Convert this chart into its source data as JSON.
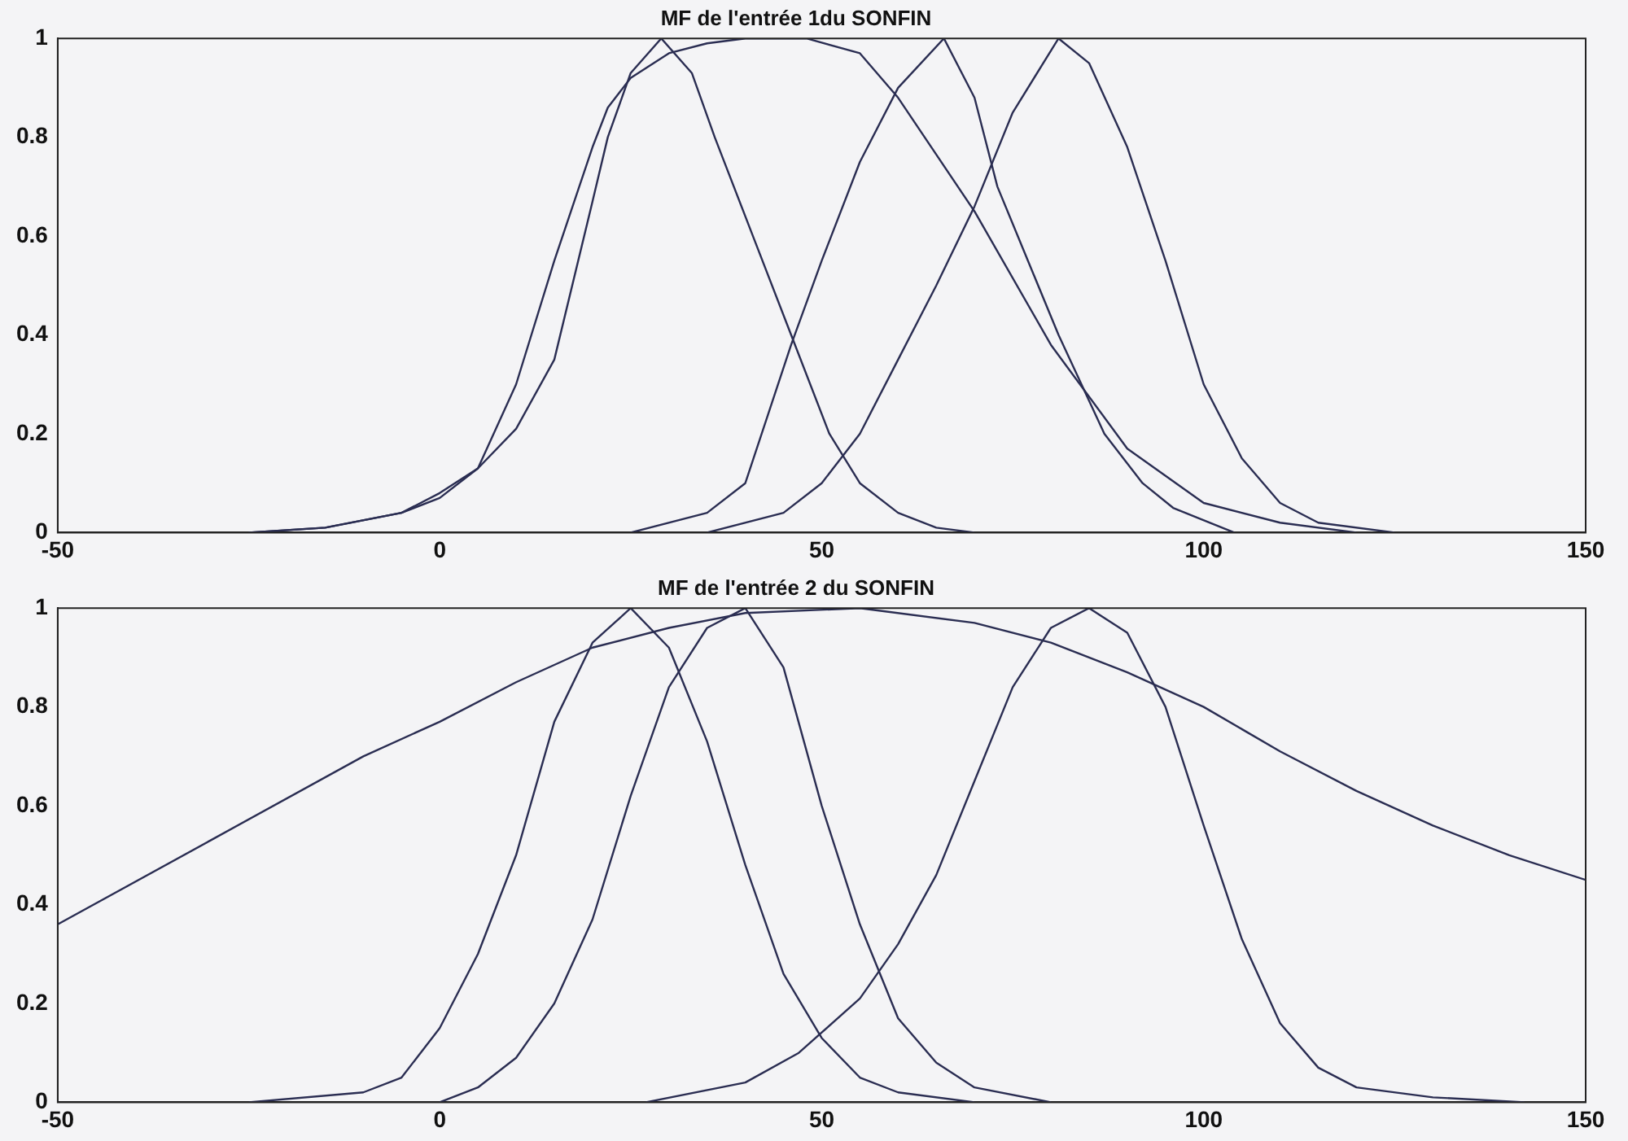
{
  "chart_data": [
    {
      "type": "line",
      "title": "MF de l'entrée 1du SONFIN",
      "xlim": [
        -50,
        150
      ],
      "xticks": [
        -50,
        0,
        50,
        100,
        150
      ],
      "ylim": [
        0,
        1
      ],
      "yticks": [
        0,
        0.2,
        0.4,
        0.6,
        0.8,
        1
      ],
      "grid": false,
      "legend": false,
      "marker": "none",
      "line_style": "solid",
      "series": [
        {
          "color": "#2a2d52",
          "x": [
            -25,
            -15,
            -5,
            0,
            5,
            10,
            15,
            20,
            22,
            25,
            29,
            33,
            36,
            41,
            46,
            51,
            55,
            60,
            65,
            70
          ],
          "values": [
            0,
            0.01,
            0.04,
            0.08,
            0.13,
            0.21,
            0.35,
            0.67,
            0.8,
            0.93,
            1,
            0.93,
            0.8,
            0.6,
            0.4,
            0.2,
            0.1,
            0.04,
            0.01,
            0
          ]
        },
        {
          "color": "#2a2d52",
          "x": [
            -25,
            -15,
            -5,
            0,
            5,
            10,
            15,
            20,
            22,
            25,
            30,
            35,
            40,
            48,
            55,
            60,
            70,
            80,
            90,
            100,
            110,
            120
          ],
          "values": [
            0,
            0.01,
            0.04,
            0.07,
            0.13,
            0.3,
            0.55,
            0.78,
            0.86,
            0.92,
            0.97,
            0.99,
            1,
            1,
            0.97,
            0.88,
            0.65,
            0.38,
            0.17,
            0.06,
            0.02,
            0
          ]
        },
        {
          "color": "#2a2d52",
          "x": [
            25,
            35,
            40,
            46,
            50,
            55,
            60,
            66,
            70,
            73,
            77,
            81,
            87,
            92,
            96,
            104
          ],
          "values": [
            0,
            0.04,
            0.1,
            0.38,
            0.55,
            0.75,
            0.9,
            1,
            0.88,
            0.7,
            0.55,
            0.4,
            0.2,
            0.1,
            0.05,
            0
          ]
        },
        {
          "color": "#2a2d52",
          "x": [
            35,
            45,
            50,
            55,
            60,
            65,
            70,
            75,
            81,
            85,
            90,
            95,
            100,
            105,
            110,
            115,
            125
          ],
          "values": [
            0,
            0.04,
            0.1,
            0.2,
            0.35,
            0.5,
            0.66,
            0.85,
            1,
            0.95,
            0.78,
            0.55,
            0.3,
            0.15,
            0.06,
            0.02,
            0
          ]
        }
      ]
    },
    {
      "type": "line",
      "title": "MF de l'entrée 2 du SONFIN",
      "xlim": [
        -50,
        150
      ],
      "xticks": [
        -50,
        0,
        50,
        100,
        150
      ],
      "ylim": [
        0,
        1
      ],
      "yticks": [
        0,
        0.2,
        0.4,
        0.6,
        0.8,
        1
      ],
      "grid": false,
      "legend": false,
      "marker": "none",
      "line_style": "solid",
      "series": [
        {
          "color": "#2a2d52",
          "x": [
            -50,
            -30,
            -10,
            0,
            10,
            20,
            30,
            40,
            55,
            70,
            80,
            90,
            100,
            110,
            120,
            130,
            140,
            150
          ],
          "values": [
            0.36,
            0.53,
            0.7,
            0.77,
            0.85,
            0.92,
            0.96,
            0.99,
            1,
            0.97,
            0.93,
            0.87,
            0.8,
            0.71,
            0.63,
            0.56,
            0.5,
            0.45
          ]
        },
        {
          "color": "#2a2d52",
          "x": [
            -25,
            -10,
            -5,
            0,
            5,
            10,
            15,
            20,
            25,
            30,
            35,
            40,
            45,
            50,
            55,
            60,
            70
          ],
          "values": [
            0,
            0.02,
            0.05,
            0.15,
            0.3,
            0.5,
            0.77,
            0.93,
            1,
            0.92,
            0.73,
            0.48,
            0.26,
            0.13,
            0.05,
            0.02,
            0
          ]
        },
        {
          "color": "#2a2d52",
          "x": [
            0,
            5,
            10,
            15,
            20,
            25,
            30,
            35,
            40,
            45,
            50,
            55,
            60,
            65,
            70,
            80
          ],
          "values": [
            0,
            0.03,
            0.09,
            0.2,
            0.37,
            0.62,
            0.84,
            0.96,
            1,
            0.88,
            0.6,
            0.36,
            0.17,
            0.08,
            0.03,
            0
          ]
        },
        {
          "color": "#2a2d52",
          "x": [
            27,
            40,
            47,
            55,
            60,
            65,
            70,
            75,
            80,
            85,
            90,
            95,
            100,
            105,
            110,
            115,
            120,
            130,
            142
          ],
          "values": [
            0,
            0.04,
            0.1,
            0.21,
            0.32,
            0.46,
            0.65,
            0.84,
            0.96,
            1,
            0.95,
            0.8,
            0.56,
            0.33,
            0.16,
            0.07,
            0.03,
            0.01,
            0
          ]
        }
      ]
    }
  ]
}
